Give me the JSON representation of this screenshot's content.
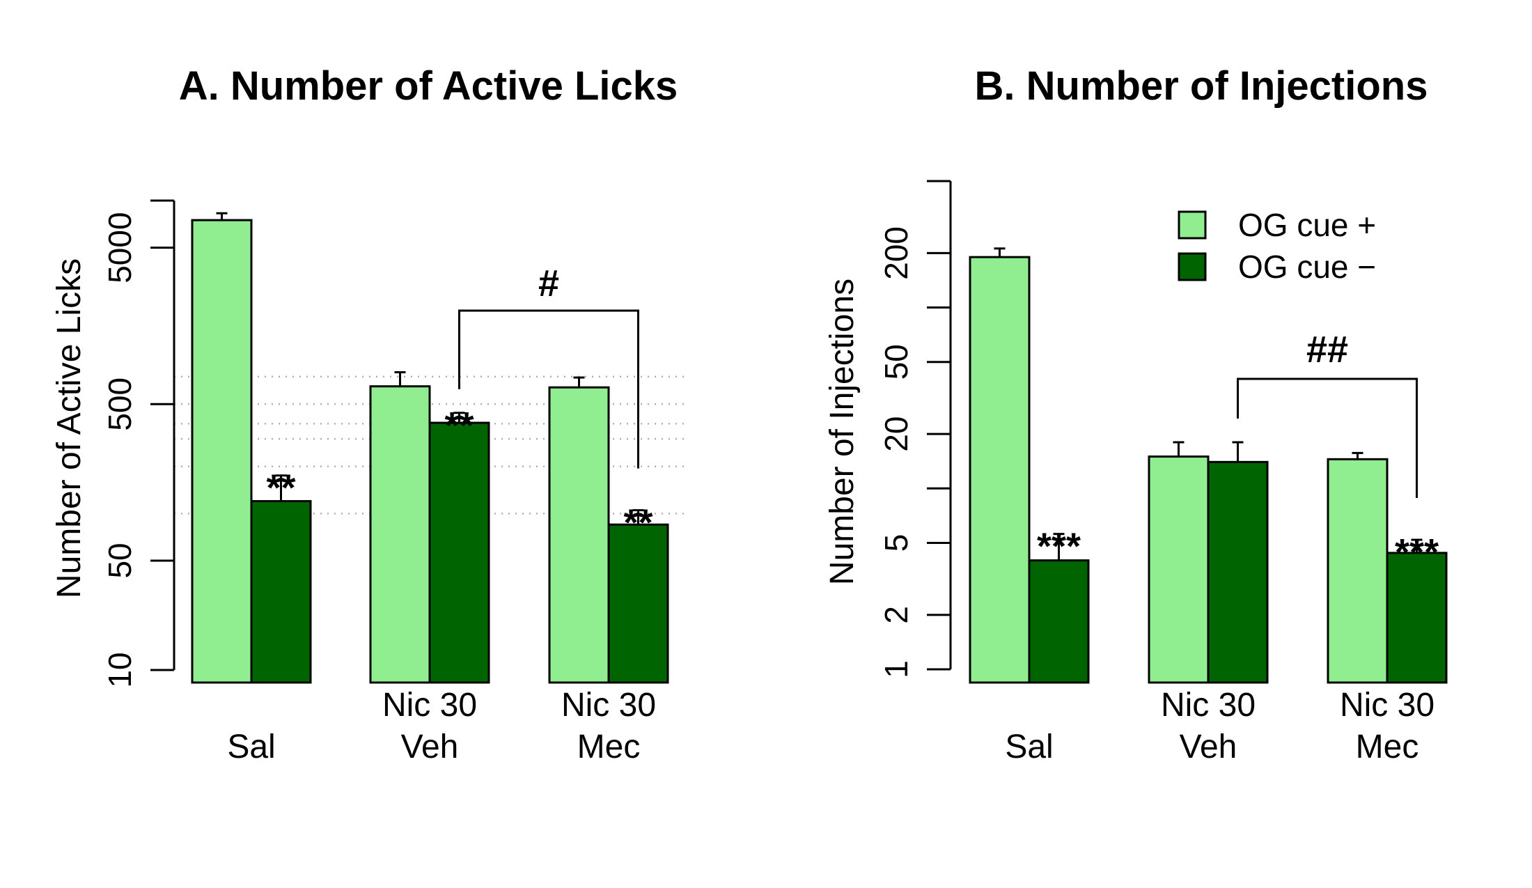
{
  "chart_data": [
    {
      "type": "bar",
      "title": "A. Number of Active Licks",
      "xlabel": "",
      "ylabel": "Number of Active Licks",
      "scale": "log",
      "ylim": [
        10,
        10000
      ],
      "yticks": [
        10,
        50,
        500,
        5000
      ],
      "ytick_labels": [
        "10",
        "50",
        "500",
        "5000"
      ],
      "categories": [
        {
          "lines": [
            "",
            "Sal"
          ]
        },
        {
          "lines": [
            "Nic 30",
            "Veh"
          ]
        },
        {
          "lines": [
            "Nic 30",
            "Mec"
          ]
        }
      ],
      "series": [
        {
          "name": "OG cue +",
          "color": "#90ee90",
          "values": [
            7500,
            650,
            640
          ],
          "errors": [
            800,
            150,
            100
          ]
        },
        {
          "name": "OG cue −",
          "color": "#006400",
          "values": [
            120,
            380,
            85
          ],
          "errors": [
            55,
            60,
            20
          ]
        }
      ],
      "reference_lines": [
        750,
        500,
        375,
        300,
        200,
        100
      ],
      "annotations": [
        {
          "series": 1,
          "category": 0,
          "text": "**"
        },
        {
          "series": 1,
          "category": 1,
          "text": "**"
        },
        {
          "series": 1,
          "category": 2,
          "text": "**"
        }
      ],
      "bracket": {
        "from_category": 1,
        "to_category": 2,
        "text": "#"
      },
      "grid": false,
      "legend": null
    },
    {
      "type": "bar",
      "title": "B. Number of Injections",
      "xlabel": "",
      "ylabel": "Number of Injections",
      "scale": "log",
      "ylim": [
        1,
        500
      ],
      "yticks": [
        1,
        2,
        5,
        10,
        20,
        50,
        100,
        200,
        500
      ],
      "ytick_labels": [
        "1",
        "2",
        "5",
        "",
        "20",
        "50",
        "",
        "200",
        ""
      ],
      "categories": [
        {
          "lines": [
            "",
            "Sal"
          ]
        },
        {
          "lines": [
            "Nic 30",
            "Veh"
          ]
        },
        {
          "lines": [
            "Nic 30",
            "Mec"
          ]
        }
      ],
      "series": [
        {
          "name": "OG cue +",
          "color": "#90ee90",
          "values": [
            190,
            15,
            14.5
          ],
          "errors": [
            22,
            3,
            1.2
          ]
        },
        {
          "name": "OG cue −",
          "color": "#006400",
          "values": [
            4,
            14,
            4.4
          ],
          "errors": [
            1.6,
            4,
            0.8
          ]
        }
      ],
      "annotations": [
        {
          "series": 1,
          "category": 0,
          "text": "***"
        },
        {
          "series": 1,
          "category": 2,
          "text": "***"
        }
      ],
      "bracket": {
        "from_category": 1,
        "to_category": 2,
        "text": "##"
      },
      "grid": false,
      "legend": {
        "position": "top-right",
        "entries": [
          {
            "label": "OG cue +",
            "color": "#90ee90"
          },
          {
            "label": "OG cue −",
            "color": "#006400"
          }
        ]
      }
    }
  ]
}
